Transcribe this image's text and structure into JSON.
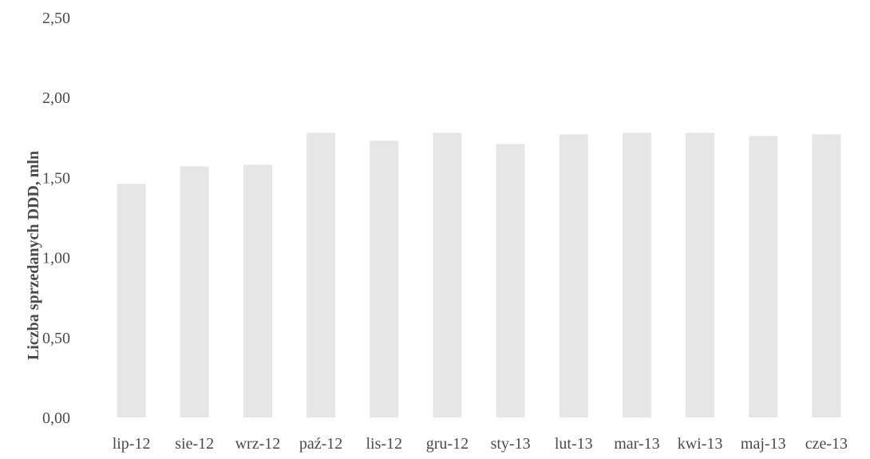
{
  "chart_data": {
    "type": "bar",
    "title": "",
    "xlabel": "",
    "ylabel": "Liczba sprzedanych DDD, mln",
    "ylim": [
      0,
      2.5
    ],
    "yticks": [
      "0,00",
      "0,50",
      "1,00",
      "1,50",
      "2,00",
      "2,50"
    ],
    "categories": [
      "lip-12",
      "sie-12",
      "wrz-12",
      "paź-12",
      "lis-12",
      "gru-12",
      "sty-13",
      "lut-13",
      "mar-13",
      "kwi-13",
      "maj-13",
      "cze-13"
    ],
    "values": [
      1.46,
      1.57,
      1.58,
      1.78,
      1.73,
      1.78,
      1.71,
      1.77,
      1.78,
      1.78,
      1.76,
      1.77
    ],
    "grid": false,
    "bar_color": "#e6e6e6"
  }
}
